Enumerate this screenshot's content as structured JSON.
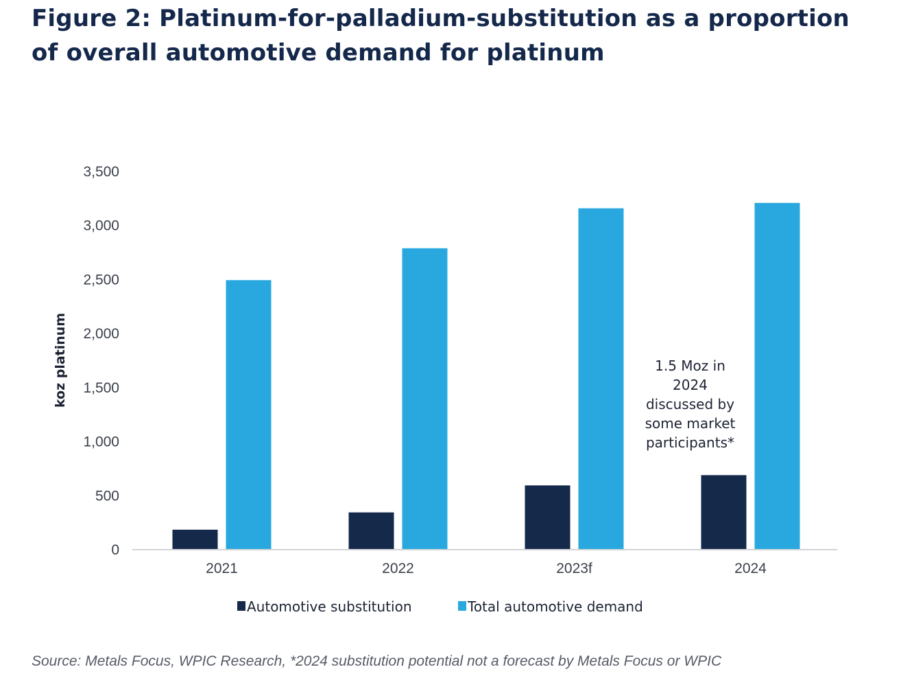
{
  "chart_data": {
    "type": "bar",
    "title": "Figure 2: Platinum-for-palladium-substitution as a proportion of overall automotive demand for platinum",
    "xlabel": "",
    "ylabel": "koz platinum",
    "ylim": [
      0,
      3500
    ],
    "yticks": [
      0,
      500,
      1000,
      1500,
      2000,
      2500,
      3000,
      3500
    ],
    "ytick_labels": [
      "0",
      "500",
      "1,000",
      "1,500",
      "2,000",
      "2,500",
      "3,000",
      "3,500"
    ],
    "grid": false,
    "legend_position": "bottom",
    "categories": [
      "2021",
      "2022",
      "2023f",
      "2024"
    ],
    "series": [
      {
        "name": "Automotive substitution",
        "color": "#15294a",
        "values": [
          185,
          345,
          595,
          690
        ]
      },
      {
        "name": "Total automotive demand",
        "color": "#29a8e0",
        "values": [
          2495,
          2790,
          3160,
          3210
        ]
      }
    ],
    "annotations": [
      {
        "category": "2024",
        "lines": [
          "1.5 Moz in",
          "2024",
          "discussed by",
          "some market",
          "participants*"
        ]
      }
    ]
  },
  "source": "Source: Metals Focus, WPIC Research, *2024 substitution potential not a forecast by Metals Focus or WPIC"
}
